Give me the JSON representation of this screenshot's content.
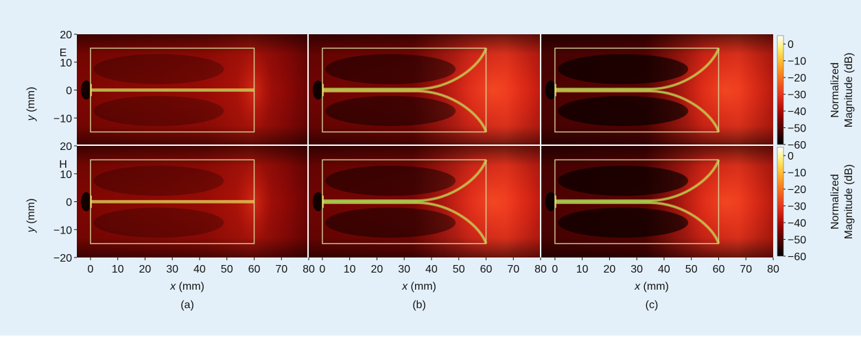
{
  "chart_data": {
    "type": "heatmap",
    "colors": {
      "panel_background": "#e4f0f9",
      "outline": "#d9d9a0",
      "centerline": "#9ad34a",
      "colormap": [
        "#000000",
        "#3a0000",
        "#7a0000",
        "#b80e0a",
        "#e0301c",
        "#f25a1f",
        "#fb8c20",
        "#fec13a",
        "#fff176",
        "#ffffff"
      ]
    },
    "colorbar": {
      "label_line1": "Normalized",
      "label_line2": "Magnitude (dB)",
      "range": [
        -60,
        5
      ],
      "ticks": [
        "0",
        "−10",
        "−20",
        "−30",
        "−40",
        "−50",
        "−60"
      ],
      "tick_values": [
        0,
        -10,
        -20,
        -30,
        -40,
        -50,
        -60
      ]
    },
    "x_axis": {
      "label": "x (mm)",
      "range": [
        -5,
        80
      ],
      "ticks": [
        "0",
        "10",
        "20",
        "30",
        "40",
        "50",
        "60",
        "70",
        "80"
      ],
      "tick_values": [
        0,
        10,
        20,
        30,
        40,
        50,
        60,
        70,
        80
      ]
    },
    "y_axis": {
      "label": "y (mm)",
      "range": [
        -20,
        20
      ],
      "ticks": [
        "20",
        "10",
        "0",
        "−10",
        "−20"
      ],
      "tick_values": [
        20,
        10,
        0,
        -10,
        -20
      ]
    },
    "rows": [
      {
        "label": "E",
        "field": "E"
      },
      {
        "label": "H",
        "field": "H"
      }
    ],
    "columns": [
      {
        "label": "(a)",
        "taper": "none"
      },
      {
        "label": "(b)",
        "taper": "flare"
      },
      {
        "label": "(c)",
        "taper": "flare"
      }
    ],
    "structure": {
      "box_x": [
        0,
        60
      ],
      "box_y": [
        -15,
        15
      ],
      "feed_x": 0,
      "flare_start_x": 35,
      "flare_end_x": 60,
      "flare_end_y": 15
    }
  }
}
